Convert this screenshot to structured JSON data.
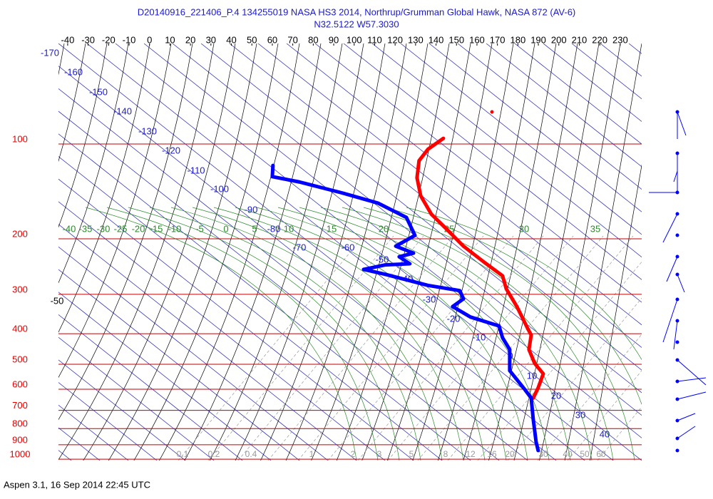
{
  "chart_data": {
    "type": "skewt",
    "title": "D20140916_221406_P.4 134255019 NASA HS3 2014, Northrup/Grumman Global Hawk, NASA 872 (AV-6)",
    "subtitle": "N32.5122 W57.3030",
    "footer": "Aspen 3.1, 16 Sep 2014  22:45 UTC",
    "xlim": [
      -44.5,
      240.5
    ],
    "xticks": [
      -40,
      -30,
      -20,
      -10,
      0,
      10,
      20,
      30,
      40,
      50,
      60,
      70,
      80,
      90,
      100,
      110,
      120,
      130,
      140,
      150,
      160,
      170,
      180,
      190,
      200,
      210,
      220,
      230
    ],
    "log_y": true,
    "ylim": [
      1010,
      48
    ],
    "yticks": [
      100,
      200,
      300,
      400,
      500,
      600,
      700,
      800,
      900,
      1000
    ],
    "ytick_color": "#e00000",
    "grid": true,
    "grid_color": "#c00000",
    "blue_labels": [
      -170,
      -160,
      -150,
      -140,
      -130,
      -120,
      -110,
      -100,
      -90,
      -80,
      -70,
      -60,
      -50,
      -40,
      -30,
      -20,
      -10,
      0,
      10,
      20,
      30,
      40
    ],
    "green_labels": [
      -40,
      -35,
      -30,
      -25,
      -20,
      -15,
      -10,
      -5,
      0,
      5,
      10,
      15,
      20,
      25,
      30,
      35
    ],
    "gray_labels": [
      0.1,
      0.2,
      0.4,
      1,
      2,
      3,
      5,
      8,
      12,
      16,
      20,
      30,
      40,
      50,
      60
    ],
    "black_label": -50,
    "series": [
      {
        "color": "#ff0000",
        "x": [
          143.6,
          136,
          131.7,
          130.7,
          132.5,
          137.7,
          144.7,
          153.4,
          163.8,
          172.5,
          174.3,
          179.5,
          184.7,
          186.5,
          185.4,
          188.2,
          192.4,
          189.9,
          187.5
        ],
        "pressure": [
          96,
          104,
          113,
          128,
          146,
          167,
          185,
          211,
          238,
          262,
          288,
          328,
          384,
          404,
          449,
          497,
          536,
          594,
          640
        ]
      },
      {
        "color": "#0000ff",
        "x": [
          60.3,
          60,
          73.2,
          94.1,
          111.6,
          125.5,
          129.7,
          120.3,
          129,
          122,
          127.2,
          115,
          104.6,
          115,
          136,
          151.6,
          153.4,
          148.1,
          156.8,
          170.8,
          172.5,
          176,
          176,
          183,
          186.5,
          187.5,
          188.9,
          189.9
        ],
        "pressure": [
          117,
          127,
          132,
          143,
          154,
          171,
          195,
          211,
          222,
          228,
          240,
          242,
          250,
          259,
          281,
          292,
          310,
          328,
          354,
          378,
          412,
          449,
          524,
          597,
          640,
          748,
          882,
          939
        ]
      }
    ]
  }
}
